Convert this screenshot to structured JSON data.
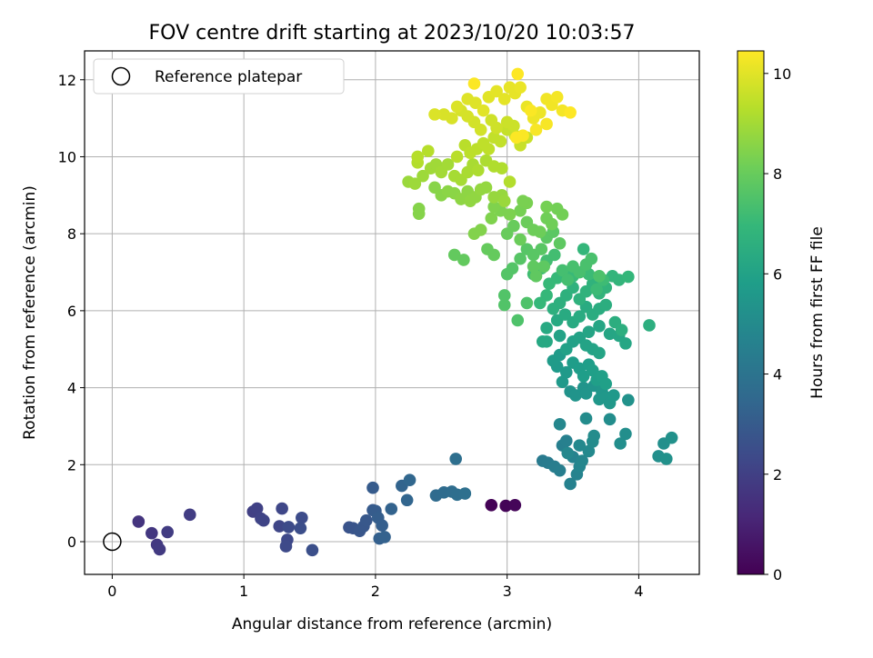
{
  "chart_data": {
    "type": "scatter",
    "title": "FOV centre drift starting at 2023/10/20 10:03:57",
    "xlabel": "Angular distance from reference (arcmin)",
    "ylabel": "Rotation from reference (arcmin)",
    "xlim": [
      -0.21,
      4.46
    ],
    "ylim": [
      -0.85,
      12.75
    ],
    "xticks": [
      0,
      1,
      2,
      3,
      4
    ],
    "yticks": [
      0,
      2,
      4,
      6,
      8,
      10,
      12
    ],
    "grid": true,
    "legend": {
      "placement": "top-left",
      "entries": [
        {
          "label": "Reference platepar",
          "marker": "open-circle"
        }
      ]
    },
    "reference_point": {
      "x": 0,
      "y": 0
    },
    "colorbar": {
      "label": "Hours from first FF file",
      "min": 0,
      "max": 10.45,
      "ticks": [
        0,
        2,
        4,
        6,
        8,
        10
      ],
      "colormap": "viridis"
    },
    "colormap_stops": [
      "#440154",
      "#482878",
      "#3e4989",
      "#31688e",
      "#26828e",
      "#1f9e89",
      "#35b779",
      "#6ece58",
      "#b5de2b",
      "#fde725"
    ],
    "points": [
      [
        2.88,
        0.95,
        0.05
      ],
      [
        2.99,
        0.93,
        0.1
      ],
      [
        3.06,
        0.95,
        0.15
      ],
      [
        0.2,
        0.52,
        1.6
      ],
      [
        0.3,
        0.22,
        1.7
      ],
      [
        0.34,
        -0.08,
        1.75
      ],
      [
        0.36,
        -0.2,
        1.8
      ],
      [
        0.42,
        0.25,
        1.85
      ],
      [
        0.59,
        0.7,
        1.9
      ],
      [
        1.07,
        0.78,
        2.0
      ],
      [
        1.1,
        0.86,
        2.05
      ],
      [
        1.13,
        0.6,
        2.1
      ],
      [
        1.15,
        0.55,
        2.15
      ],
      [
        1.27,
        0.4,
        2.2
      ],
      [
        1.29,
        0.86,
        2.25
      ],
      [
        1.33,
        0.05,
        2.3
      ],
      [
        1.32,
        -0.12,
        2.35
      ],
      [
        1.34,
        0.38,
        2.4
      ],
      [
        1.44,
        0.62,
        2.45
      ],
      [
        1.43,
        0.35,
        2.5
      ],
      [
        1.52,
        -0.22,
        2.55
      ],
      [
        1.8,
        0.37,
        2.7
      ],
      [
        1.83,
        0.35,
        2.75
      ],
      [
        1.88,
        0.28,
        2.8
      ],
      [
        1.91,
        0.4,
        2.85
      ],
      [
        1.93,
        0.55,
        2.9
      ],
      [
        1.98,
        0.82,
        2.95
      ],
      [
        1.98,
        1.4,
        3.0
      ],
      [
        2.0,
        0.8,
        3.05
      ],
      [
        2.02,
        0.62,
        3.1
      ],
      [
        2.05,
        0.42,
        3.15
      ],
      [
        2.03,
        0.08,
        3.2
      ],
      [
        2.07,
        0.12,
        3.25
      ],
      [
        2.12,
        0.85,
        3.3
      ],
      [
        2.2,
        1.45,
        3.35
      ],
      [
        2.24,
        1.08,
        3.4
      ],
      [
        2.26,
        1.6,
        3.45
      ],
      [
        2.46,
        1.2,
        3.6
      ],
      [
        2.52,
        1.28,
        3.65
      ],
      [
        2.58,
        1.3,
        3.7
      ],
      [
        2.62,
        1.22,
        3.75
      ],
      [
        2.61,
        2.15,
        3.8
      ],
      [
        2.68,
        1.25,
        3.85
      ],
      [
        3.27,
        2.1,
        4.3
      ],
      [
        3.31,
        2.05,
        4.35
      ],
      [
        3.36,
        1.95,
        4.4
      ],
      [
        3.4,
        1.85,
        4.45
      ],
      [
        3.42,
        2.5,
        4.5
      ],
      [
        3.45,
        2.62,
        4.55
      ],
      [
        3.48,
        1.5,
        4.6
      ],
      [
        3.5,
        2.2,
        4.65
      ],
      [
        3.53,
        1.75,
        4.7
      ],
      [
        3.55,
        1.95,
        4.75
      ],
      [
        3.57,
        2.1,
        4.8
      ],
      [
        3.4,
        3.05,
        4.85
      ],
      [
        3.46,
        2.3,
        4.85
      ],
      [
        3.55,
        2.5,
        4.9
      ],
      [
        3.62,
        2.35,
        4.95
      ],
      [
        3.65,
        2.6,
        5.0
      ],
      [
        3.66,
        2.75,
        5.05
      ],
      [
        3.6,
        3.2,
        5.05
      ],
      [
        3.78,
        3.18,
        5.1
      ],
      [
        3.9,
        2.8,
        5.15
      ],
      [
        3.86,
        2.55,
        5.15
      ],
      [
        4.15,
        2.22,
        5.2
      ],
      [
        4.19,
        2.55,
        5.2
      ],
      [
        4.21,
        2.15,
        5.25
      ],
      [
        4.25,
        2.7,
        5.25
      ],
      [
        3.92,
        3.68,
        5.3
      ],
      [
        3.48,
        3.9,
        5.35
      ],
      [
        3.52,
        3.8,
        5.4
      ],
      [
        3.58,
        4.0,
        5.4
      ],
      [
        3.6,
        3.85,
        5.45
      ],
      [
        3.66,
        4.05,
        5.45
      ],
      [
        3.7,
        3.7,
        5.5
      ],
      [
        3.72,
        3.9,
        5.5
      ],
      [
        3.75,
        3.75,
        5.55
      ],
      [
        3.78,
        3.6,
        5.55
      ],
      [
        3.81,
        3.8,
        5.6
      ],
      [
        3.42,
        4.15,
        5.6
      ],
      [
        3.45,
        4.4,
        5.65
      ],
      [
        3.38,
        4.55,
        5.65
      ],
      [
        3.35,
        4.7,
        5.7
      ],
      [
        3.4,
        4.85,
        5.7
      ],
      [
        3.5,
        4.65,
        5.75
      ],
      [
        3.55,
        4.5,
        5.75
      ],
      [
        3.58,
        4.3,
        5.8
      ],
      [
        3.62,
        4.6,
        5.8
      ],
      [
        3.65,
        4.45,
        5.85
      ],
      [
        3.68,
        4.2,
        5.85
      ],
      [
        3.72,
        4.3,
        5.9
      ],
      [
        3.75,
        4.1,
        5.9
      ],
      [
        3.45,
        5.0,
        5.95
      ],
      [
        3.5,
        5.2,
        5.95
      ],
      [
        3.4,
        5.35,
        6.0
      ],
      [
        3.55,
        5.3,
        6.0
      ],
      [
        3.6,
        5.1,
        6.05
      ],
      [
        3.65,
        5.0,
        6.05
      ],
      [
        3.7,
        4.9,
        6.1
      ],
      [
        3.62,
        5.45,
        6.1
      ],
      [
        3.7,
        5.6,
        6.15
      ],
      [
        3.78,
        5.4,
        6.15
      ],
      [
        3.85,
        5.35,
        6.2
      ],
      [
        3.9,
        5.15,
        6.2
      ],
      [
        3.3,
        5.2,
        6.25
      ],
      [
        3.27,
        5.2,
        6.25
      ],
      [
        3.3,
        5.55,
        6.3
      ],
      [
        3.38,
        5.75,
        6.3
      ],
      [
        3.44,
        5.9,
        6.35
      ],
      [
        3.5,
        5.7,
        6.35
      ],
      [
        3.55,
        5.85,
        6.4
      ],
      [
        3.6,
        6.1,
        6.4
      ],
      [
        3.65,
        5.9,
        6.45
      ],
      [
        3.7,
        6.05,
        6.45
      ],
      [
        3.75,
        6.15,
        6.5
      ],
      [
        3.82,
        5.7,
        6.5
      ],
      [
        3.87,
        5.5,
        6.55
      ],
      [
        4.08,
        5.62,
        6.55
      ],
      [
        3.35,
        6.05,
        6.6
      ],
      [
        3.4,
        6.2,
        6.6
      ],
      [
        3.45,
        6.4,
        6.65
      ],
      [
        3.5,
        6.6,
        6.7
      ],
      [
        3.55,
        6.3,
        6.7
      ],
      [
        3.6,
        6.5,
        6.75
      ],
      [
        3.65,
        6.7,
        6.75
      ],
      [
        3.7,
        6.45,
        6.8
      ],
      [
        3.75,
        6.6,
        6.8
      ],
      [
        3.8,
        6.9,
        6.85
      ],
      [
        3.85,
        6.8,
        6.85
      ],
      [
        3.92,
        6.88,
        6.9
      ],
      [
        3.58,
        7.6,
        6.9
      ],
      [
        3.3,
        6.4,
        6.95
      ],
      [
        3.25,
        6.2,
        6.95
      ],
      [
        3.32,
        6.7,
        7.0
      ],
      [
        3.38,
        6.85,
        7.0
      ],
      [
        3.44,
        7.0,
        7.05
      ],
      [
        3.5,
        6.9,
        7.05
      ],
      [
        3.62,
        6.95,
        7.1
      ],
      [
        3.68,
        6.55,
        7.1
      ],
      [
        3.73,
        6.8,
        7.15
      ],
      [
        3.2,
        6.95,
        7.2
      ],
      [
        3.26,
        7.1,
        7.2
      ],
      [
        3.3,
        7.3,
        7.25
      ],
      [
        3.36,
        7.45,
        7.25
      ],
      [
        3.42,
        7.05,
        7.3
      ],
      [
        3.46,
        6.8,
        7.3
      ],
      [
        3.5,
        7.15,
        7.35
      ],
      [
        3.55,
        7.0,
        7.35
      ],
      [
        3.6,
        7.2,
        7.4
      ],
      [
        3.64,
        7.35,
        7.4
      ],
      [
        3.7,
        6.9,
        7.45
      ],
      [
        3.08,
        5.75,
        7.5
      ],
      [
        3.15,
        6.2,
        7.5
      ],
      [
        2.98,
        6.15,
        7.55
      ],
      [
        2.98,
        6.4,
        7.55
      ],
      [
        3.0,
        6.95,
        7.6
      ],
      [
        3.04,
        7.1,
        7.6
      ],
      [
        3.1,
        7.35,
        7.65
      ],
      [
        3.15,
        7.6,
        7.65
      ],
      [
        3.2,
        7.45,
        7.7
      ],
      [
        3.26,
        7.6,
        7.7
      ],
      [
        3.3,
        7.9,
        7.75
      ],
      [
        3.35,
        8.05,
        7.75
      ],
      [
        3.4,
        7.75,
        7.8
      ],
      [
        3.28,
        7.15,
        7.8
      ],
      [
        3.22,
        6.9,
        7.85
      ],
      [
        3.2,
        7.15,
        7.85
      ],
      [
        2.6,
        7.45,
        7.9
      ],
      [
        2.67,
        7.32,
        7.9
      ],
      [
        2.85,
        7.6,
        7.95
      ],
      [
        2.9,
        7.45,
        7.95
      ],
      [
        3.0,
        8.0,
        8.0
      ],
      [
        3.05,
        8.2,
        8.0
      ],
      [
        3.1,
        7.85,
        8.05
      ],
      [
        3.15,
        8.3,
        8.05
      ],
      [
        3.2,
        8.1,
        8.1
      ],
      [
        3.25,
        8.05,
        8.1
      ],
      [
        3.3,
        8.4,
        8.15
      ],
      [
        3.34,
        8.25,
        8.15
      ],
      [
        3.38,
        8.65,
        8.2
      ],
      [
        3.42,
        8.5,
        8.2
      ],
      [
        3.3,
        8.7,
        8.25
      ],
      [
        3.1,
        8.6,
        8.25
      ],
      [
        3.15,
        8.8,
        8.3
      ],
      [
        3.12,
        8.85,
        8.3
      ],
      [
        3.02,
        8.5,
        8.35
      ],
      [
        2.95,
        8.6,
        8.35
      ],
      [
        2.9,
        8.7,
        8.4
      ],
      [
        2.88,
        8.4,
        8.4
      ],
      [
        2.8,
        8.1,
        8.45
      ],
      [
        2.75,
        8.0,
        8.45
      ],
      [
        2.33,
        8.65,
        8.5
      ],
      [
        2.33,
        8.52,
        8.5
      ],
      [
        2.45,
        9.2,
        8.55
      ],
      [
        2.5,
        9.0,
        8.55
      ],
      [
        2.55,
        9.1,
        8.6
      ],
      [
        2.6,
        9.05,
        8.6
      ],
      [
        2.65,
        8.9,
        8.65
      ],
      [
        2.7,
        9.1,
        8.65
      ],
      [
        2.72,
        8.85,
        8.7
      ],
      [
        2.76,
        8.95,
        8.7
      ],
      [
        2.8,
        9.15,
        8.75
      ],
      [
        2.84,
        9.2,
        8.75
      ],
      [
        2.9,
        8.95,
        8.8
      ],
      [
        2.96,
        9.0,
        8.8
      ],
      [
        2.98,
        8.85,
        8.85
      ],
      [
        2.25,
        9.35,
        8.85
      ],
      [
        2.3,
        9.3,
        8.9
      ],
      [
        2.36,
        9.5,
        8.9
      ],
      [
        2.42,
        9.7,
        8.95
      ],
      [
        2.46,
        9.8,
        8.95
      ],
      [
        2.5,
        9.6,
        9.0
      ],
      [
        2.55,
        9.8,
        9.0
      ],
      [
        2.6,
        9.5,
        9.05
      ],
      [
        2.65,
        9.4,
        9.05
      ],
      [
        2.7,
        9.6,
        9.1
      ],
      [
        2.74,
        9.8,
        9.1
      ],
      [
        2.78,
        9.65,
        9.15
      ],
      [
        2.84,
        9.9,
        9.15
      ],
      [
        2.9,
        9.75,
        9.2
      ],
      [
        2.96,
        9.7,
        9.2
      ],
      [
        3.02,
        9.35,
        9.25
      ],
      [
        2.32,
        9.85,
        9.25
      ],
      [
        2.32,
        10.0,
        9.3
      ],
      [
        2.4,
        10.15,
        9.3
      ],
      [
        2.62,
        10.0,
        9.35
      ],
      [
        2.68,
        10.3,
        9.35
      ],
      [
        2.72,
        10.1,
        9.4
      ],
      [
        2.77,
        10.2,
        9.4
      ],
      [
        2.82,
        10.35,
        9.45
      ],
      [
        2.86,
        10.2,
        9.45
      ],
      [
        2.9,
        10.5,
        9.5
      ],
      [
        2.95,
        10.4,
        9.5
      ],
      [
        3.0,
        10.7,
        9.55
      ],
      [
        3.06,
        10.55,
        9.55
      ],
      [
        3.1,
        10.3,
        9.6
      ],
      [
        3.15,
        10.5,
        9.6
      ],
      [
        3.05,
        10.8,
        9.65
      ],
      [
        3.0,
        10.9,
        9.65
      ],
      [
        2.92,
        10.75,
        9.7
      ],
      [
        2.88,
        10.95,
        9.7
      ],
      [
        2.8,
        10.7,
        9.75
      ],
      [
        2.75,
        10.9,
        9.75
      ],
      [
        2.7,
        11.05,
        9.8
      ],
      [
        2.65,
        11.2,
        9.8
      ],
      [
        2.58,
        11.0,
        9.85
      ],
      [
        2.52,
        11.1,
        9.85
      ],
      [
        2.45,
        11.1,
        9.9
      ],
      [
        2.62,
        11.3,
        9.9
      ],
      [
        2.7,
        11.5,
        9.95
      ],
      [
        2.76,
        11.4,
        9.95
      ],
      [
        2.82,
        11.2,
        10.0
      ],
      [
        2.86,
        11.55,
        10.0
      ],
      [
        2.92,
        11.7,
        10.05
      ],
      [
        2.98,
        11.5,
        10.05
      ],
      [
        3.02,
        11.8,
        10.1
      ],
      [
        3.06,
        11.65,
        10.1
      ],
      [
        3.1,
        11.8,
        10.15
      ],
      [
        3.15,
        11.3,
        10.15
      ],
      [
        3.2,
        11.0,
        10.2
      ],
      [
        3.25,
        11.15,
        10.2
      ],
      [
        3.3,
        11.5,
        10.25
      ],
      [
        3.34,
        11.35,
        10.25
      ],
      [
        3.38,
        11.55,
        10.3
      ],
      [
        3.42,
        11.2,
        10.3
      ],
      [
        3.3,
        10.85,
        10.35
      ],
      [
        3.22,
        10.7,
        10.35
      ],
      [
        3.18,
        11.2,
        10.4
      ],
      [
        3.12,
        10.55,
        10.4
      ],
      [
        3.07,
        10.5,
        10.42
      ],
      [
        2.75,
        11.9,
        10.42
      ],
      [
        3.08,
        12.15,
        10.45
      ],
      [
        3.48,
        11.15,
        10.45
      ]
    ]
  }
}
